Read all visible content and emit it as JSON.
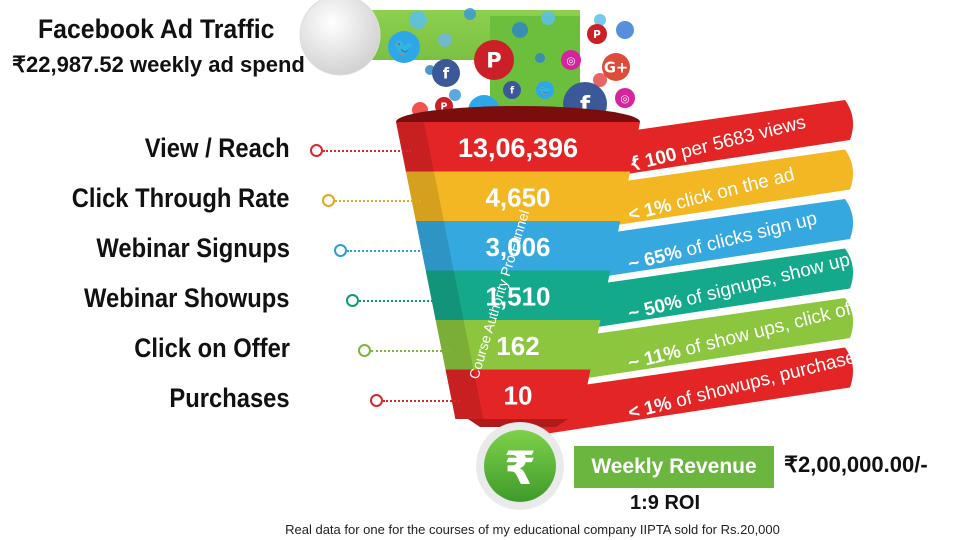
{
  "header": {
    "title": "Facebook Ad Traffic",
    "spend": "₹22,987.52 weekly ad spend"
  },
  "funnel": {
    "side_label": "Course Authority Pro Funnel",
    "stages": [
      {
        "label": "View / Reach",
        "value": "13,06,396",
        "note_bold": "₹ 100",
        "note": " per 5683 views",
        "color": "#e42525",
        "dot": "#d62a2a"
      },
      {
        "label": "Click Through Rate",
        "value": "4,650",
        "note_bold": "< 1%",
        "note": " click on the ad",
        "color": "#f2b722",
        "dot": "#e2a81e"
      },
      {
        "label": "Webinar Signups",
        "value": "3,006",
        "note_bold": "~ 65%",
        "note": " of clicks sign up",
        "color": "#35a9df",
        "dot": "#2f9ed0"
      },
      {
        "label": "Webinar Showups",
        "value": "1,510",
        "note_bold": "~ 50%",
        "note": " of signups, show up",
        "color": "#14a98a",
        "dot": "#0f9a7c"
      },
      {
        "label": "Click on Offer",
        "value": "162",
        "note_bold": "~ 11%",
        "note": " of show ups, click offer",
        "color": "#8cc63f",
        "dot": "#7db53a"
      },
      {
        "label": "Purchases",
        "value": "10",
        "note_bold": "< 1%",
        "note": " of showups, purchase",
        "color": "#e42525",
        "dot": "#d62a2a"
      }
    ]
  },
  "result": {
    "currency_symbol": "₹",
    "revenue_label": "Weekly Revenue",
    "revenue_amount": "₹2,00,000.00/-",
    "roi": "1:9 ROI"
  },
  "footnote": "Real data for one for the courses of my educational company IIPTA sold for Rs.20,000",
  "icons": [
    "twitter-icon",
    "facebook-icon",
    "pinterest-icon",
    "google-plus-icon",
    "instagram-icon"
  ]
}
